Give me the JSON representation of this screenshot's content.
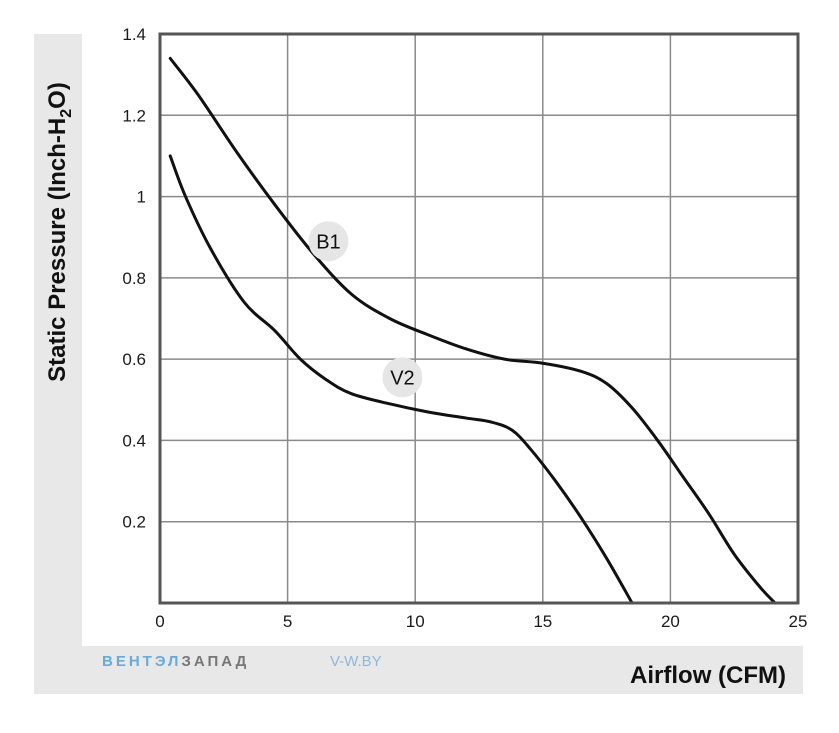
{
  "watermark": {
    "brand_part1": "ВЕНТЭЛ",
    "brand_part2": "ЗАПАД",
    "site": "V-W.BY",
    "color1": "#6aaad8",
    "color2": "#777777",
    "site_color": "#8fb8d8"
  },
  "chart_data": {
    "type": "line",
    "title": "",
    "xlabel": "Airflow (CFM)",
    "ylabel": "Static Pressure (Inch-H2O)",
    "ylabel_parts": {
      "pre": "Static Pressure (Inch-H",
      "sub": "2",
      "post": "O)"
    },
    "xlim": [
      0,
      25
    ],
    "ylim": [
      0,
      1.4
    ],
    "x_ticks": [
      0,
      5,
      10,
      15,
      20,
      25
    ],
    "x_tick_labels": [
      "0",
      "5",
      "10",
      "15",
      "20",
      "25"
    ],
    "y_ticks": [
      0.2,
      0.4,
      0.6,
      0.8,
      1,
      1.2,
      1.4
    ],
    "y_tick_labels": [
      "0.2",
      "0.4",
      "0.6",
      "0.8",
      "1",
      "1.2",
      "1.4"
    ],
    "grid": true,
    "series": [
      {
        "name": "B1",
        "color": "#111111",
        "points": [
          [
            0.4,
            1.34
          ],
          [
            1.5,
            1.25
          ],
          [
            3,
            1.11
          ],
          [
            4.5,
            0.98
          ],
          [
            6,
            0.86
          ],
          [
            7.5,
            0.76
          ],
          [
            9,
            0.7
          ],
          [
            10.5,
            0.66
          ],
          [
            12,
            0.625
          ],
          [
            13.5,
            0.6
          ],
          [
            15,
            0.59
          ],
          [
            16.5,
            0.57
          ],
          [
            17.5,
            0.54
          ],
          [
            18.5,
            0.48
          ],
          [
            19.5,
            0.4
          ],
          [
            20.5,
            0.31
          ],
          [
            21.5,
            0.22
          ],
          [
            22.5,
            0.12
          ],
          [
            23.5,
            0.04
          ],
          [
            24.1,
            0.0
          ]
        ],
        "label_at": [
          6.6,
          0.89
        ]
      },
      {
        "name": "V2",
        "color": "#111111",
        "points": [
          [
            0.4,
            1.1
          ],
          [
            1,
            1.0
          ],
          [
            2,
            0.87
          ],
          [
            3.3,
            0.74
          ],
          [
            4.5,
            0.67
          ],
          [
            5.5,
            0.6
          ],
          [
            6.5,
            0.55
          ],
          [
            7.5,
            0.515
          ],
          [
            9,
            0.49
          ],
          [
            10.5,
            0.47
          ],
          [
            12,
            0.455
          ],
          [
            13,
            0.445
          ],
          [
            13.8,
            0.425
          ],
          [
            14.5,
            0.38
          ],
          [
            15.5,
            0.3
          ],
          [
            16.5,
            0.21
          ],
          [
            17.5,
            0.11
          ],
          [
            18.5,
            0.0
          ]
        ],
        "label_at": [
          9.5,
          0.555
        ]
      }
    ]
  }
}
